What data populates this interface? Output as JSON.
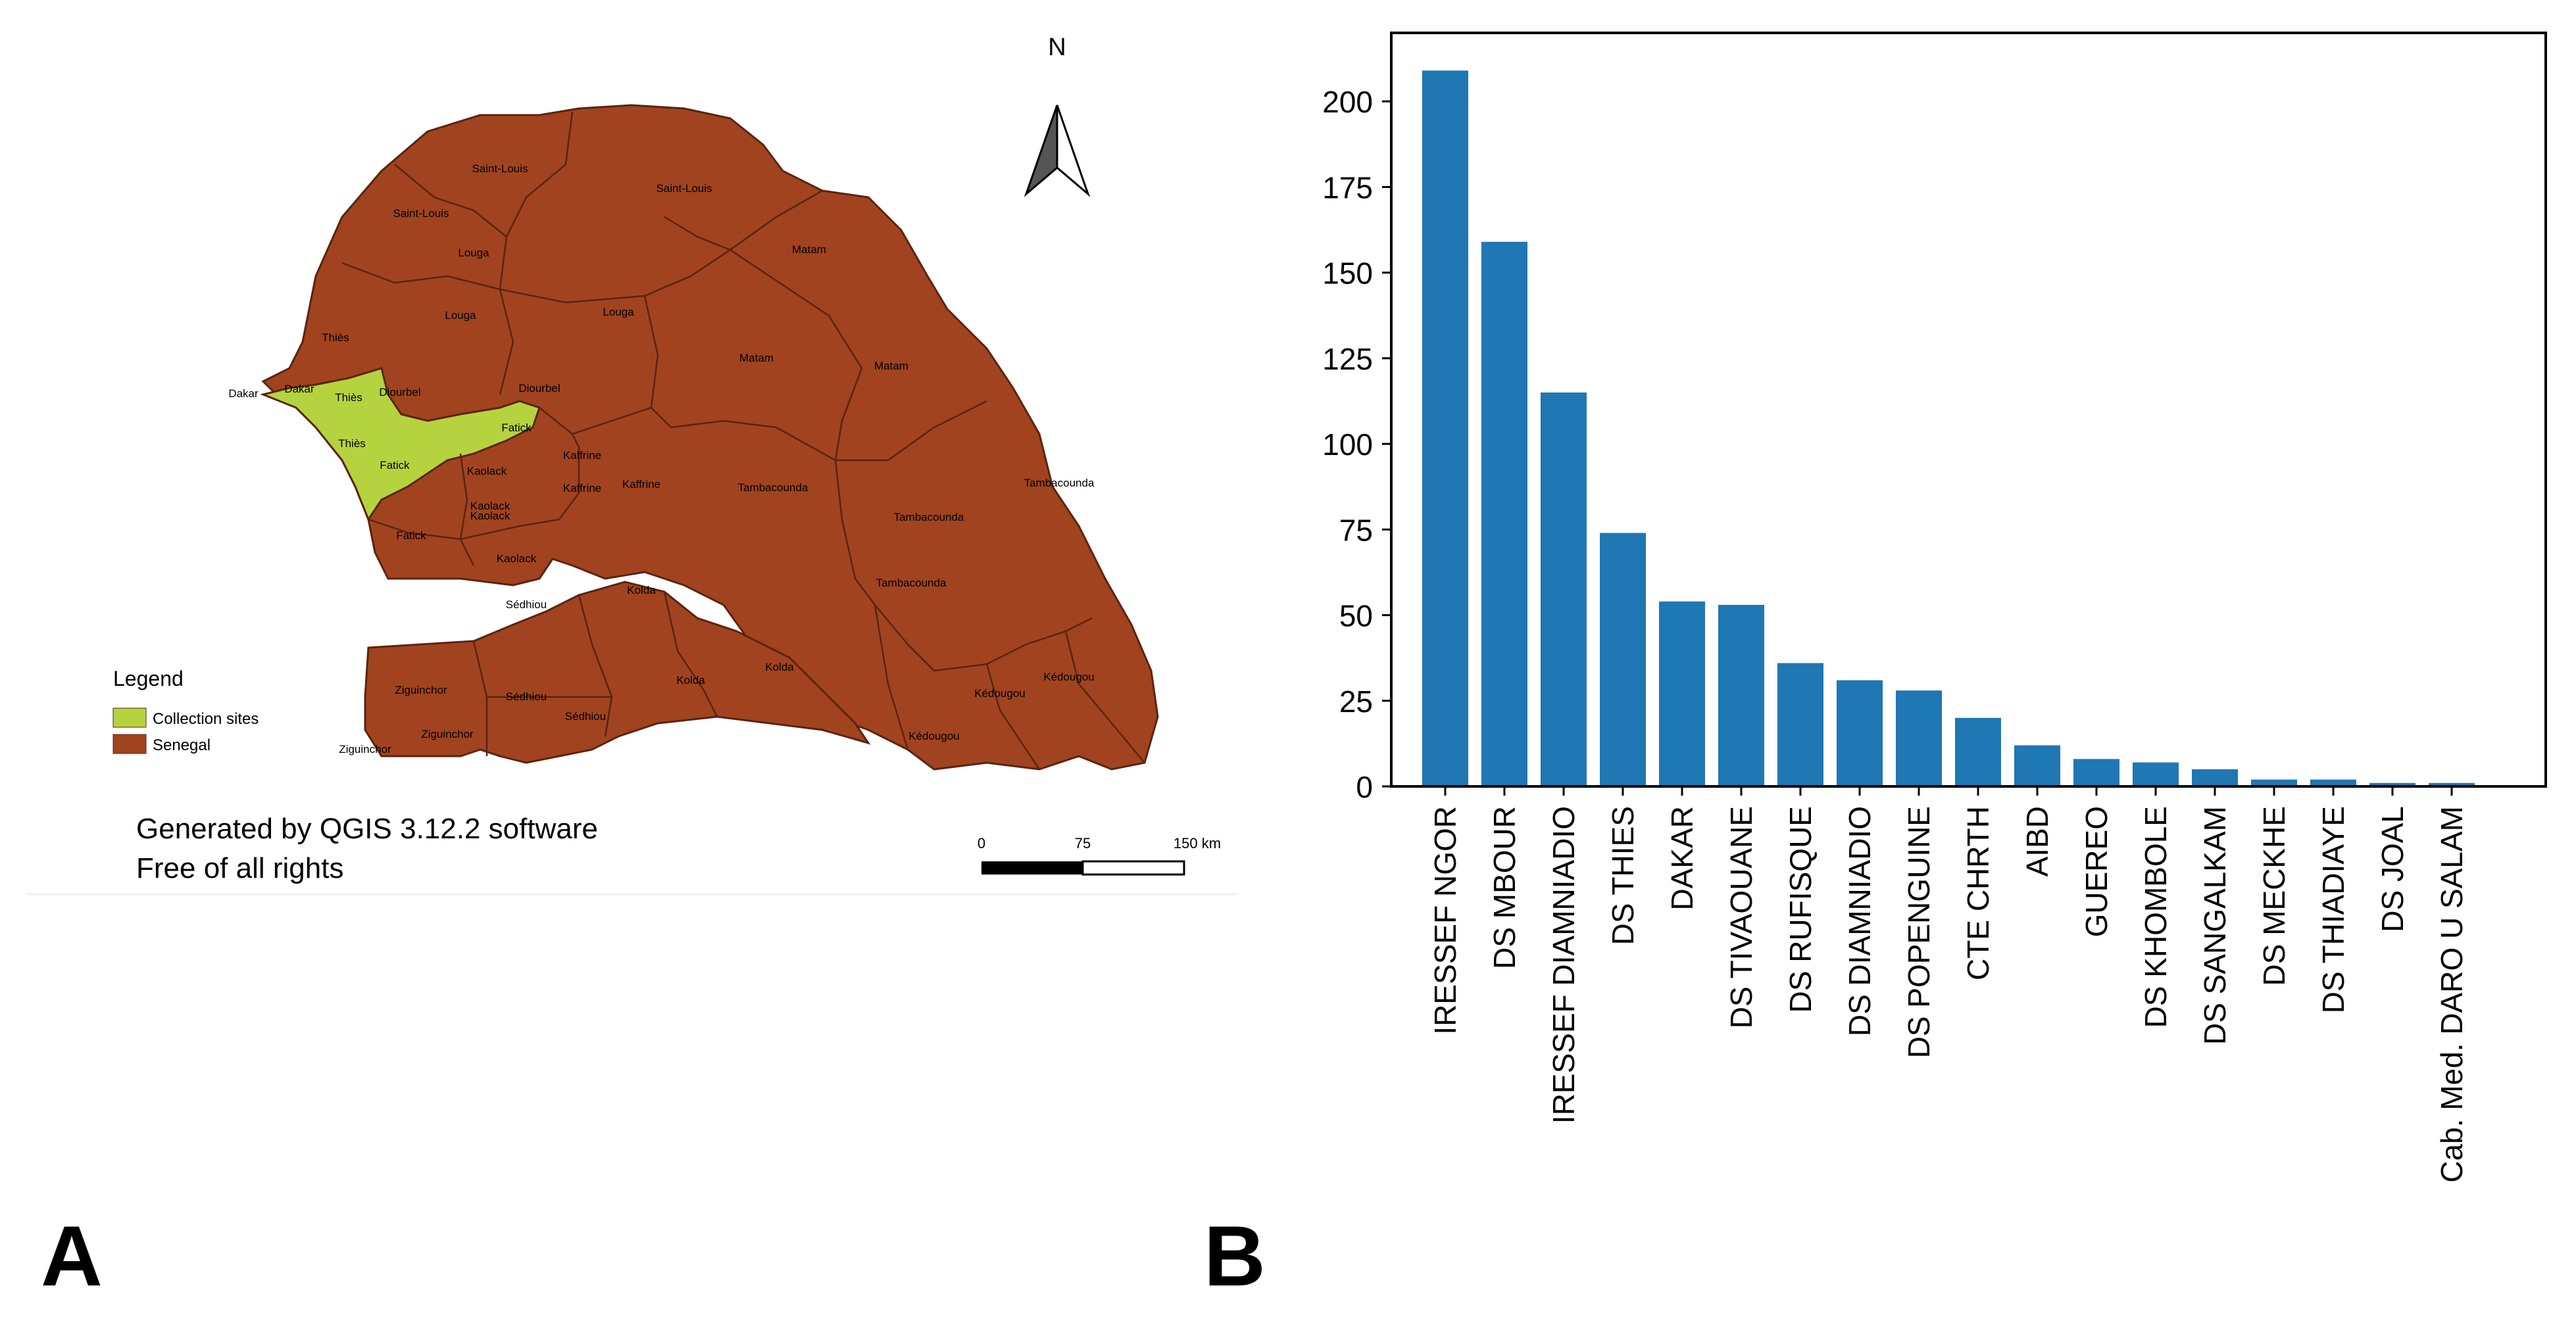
{
  "panels": {
    "a": "A",
    "b": "B"
  },
  "map": {
    "north": "N",
    "legend": {
      "title": "Legend",
      "items": [
        {
          "label": "Collection sites",
          "color": "#b5d33f"
        },
        {
          "label": "Senegal",
          "color": "#a1431f"
        }
      ]
    },
    "credit": [
      "Generated by QGIS 3.12.2 software",
      "Free of all rights"
    ],
    "scale": {
      "ticks": [
        "0",
        "75",
        "150 km"
      ]
    },
    "colors": {
      "land": "#a1431f",
      "sites": "#b5d33f",
      "border": "#5a2410"
    },
    "region_labels": [
      "Saint-Louis",
      "Saint-Louis",
      "Saint-Louis",
      "Louga",
      "Louga",
      "Louga",
      "Matam",
      "Matam",
      "Matam",
      "Thiès",
      "Thiès",
      "Thiès",
      "Dakar",
      "Dakar",
      "Diourbel",
      "Diourbel",
      "Fatick",
      "Fatick",
      "Fatick",
      "Kaolack",
      "Kaolack",
      "Kaolack",
      "Kaolack",
      "Kaffrine",
      "Kaffrine",
      "Kaffrine",
      "Tambacounda",
      "Tambacounda",
      "Tambacounda",
      "Tambacounda",
      "Kolda",
      "Kolda",
      "Kolda",
      "Sédhiou",
      "Sédhiou",
      "Sédhiou",
      "Ziguinchor",
      "Ziguinchor",
      "Ziguinchor",
      "Kédougou",
      "Kédougou",
      "Kédougou"
    ]
  },
  "chart_data": {
    "type": "bar",
    "title": "",
    "xlabel": "",
    "ylabel": "",
    "categories": [
      "IRESSEF NGOR",
      "DS MBOUR",
      "IRESSEF DIAMNIADIO",
      "DS THIES",
      "DAKAR",
      "DS TIVAOUANE",
      "DS RUFISQUE",
      "DS DIAMNIADIO",
      "DS POPENGUINE",
      "CTE CHRTH",
      "AIBD",
      "GUEREO",
      "DS KHOMBOLE",
      "DS SANGALKAM",
      "DS MECKHE",
      "DS THIADIAYE",
      "DS JOAL",
      "Cab. Med. DARO U SALAM"
    ],
    "values": [
      209,
      159,
      115,
      74,
      54,
      53,
      36,
      31,
      28,
      20,
      12,
      8,
      7,
      5,
      2,
      2,
      1,
      1
    ],
    "ylim": [
      0,
      220
    ],
    "yticks": [
      0,
      25,
      50,
      75,
      100,
      125,
      150,
      175,
      200
    ],
    "bar_color": "#1f77b4",
    "grid": false,
    "legend": false
  }
}
